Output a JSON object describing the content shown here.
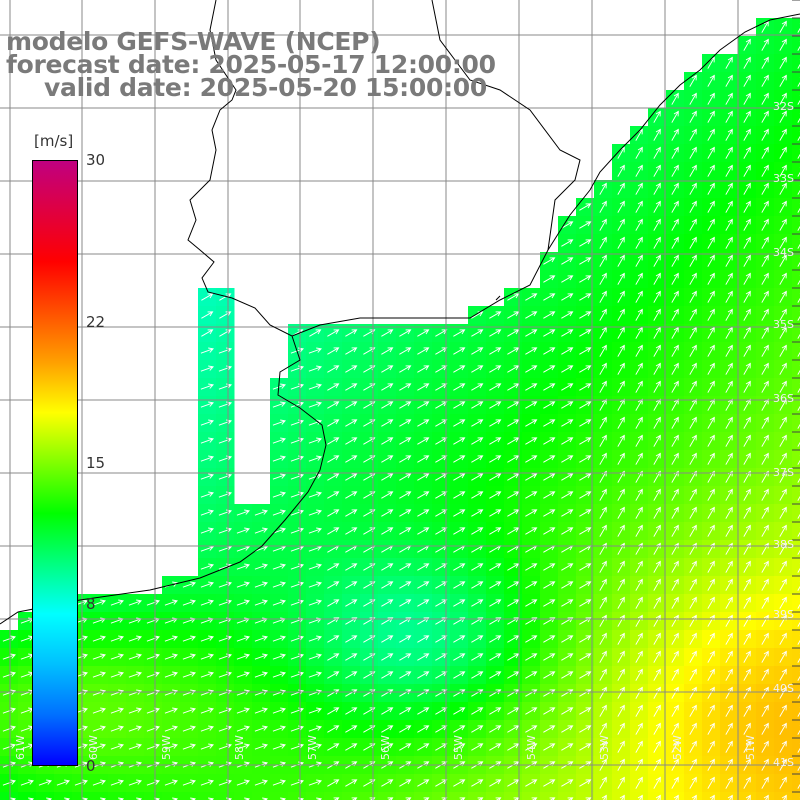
{
  "title": {
    "line1": "modelo GEFS-WAVE (NCEP)",
    "line2": "forecast date: 2025-05-17 12:00:00",
    "line3": "valid date: 2025-05-20 15:00:00"
  },
  "colorbar": {
    "unit": "[m/s]",
    "ticks": [
      {
        "label": "30",
        "value": 30
      },
      {
        "label": "22",
        "value": 22
      },
      {
        "label": "15",
        "value": 15
      },
      {
        "label": "8",
        "value": 8
      },
      {
        "label": "0",
        "value": 0
      }
    ],
    "colors": [
      "#0000ff",
      "#0070ff",
      "#00c0ff",
      "#00ffff",
      "#00ff80",
      "#00ff00",
      "#80ff00",
      "#ffff00",
      "#ffa000",
      "#ff5000",
      "#ff0000",
      "#e00040",
      "#c00080"
    ]
  },
  "lat_labels": [
    "32S",
    "33S",
    "34S",
    "35S",
    "36S",
    "37S",
    "38S",
    "39S",
    "40S",
    "41S"
  ],
  "lon_labels": [
    "61W",
    "60W",
    "59W",
    "58W",
    "57W",
    "56W",
    "55W",
    "54W",
    "53W",
    "52W",
    "51W"
  ],
  "map": {
    "land_color": "#ffffff",
    "coast_color": "#000000",
    "grid_color": "#888888",
    "arrow_color": "#ffffff"
  }
}
